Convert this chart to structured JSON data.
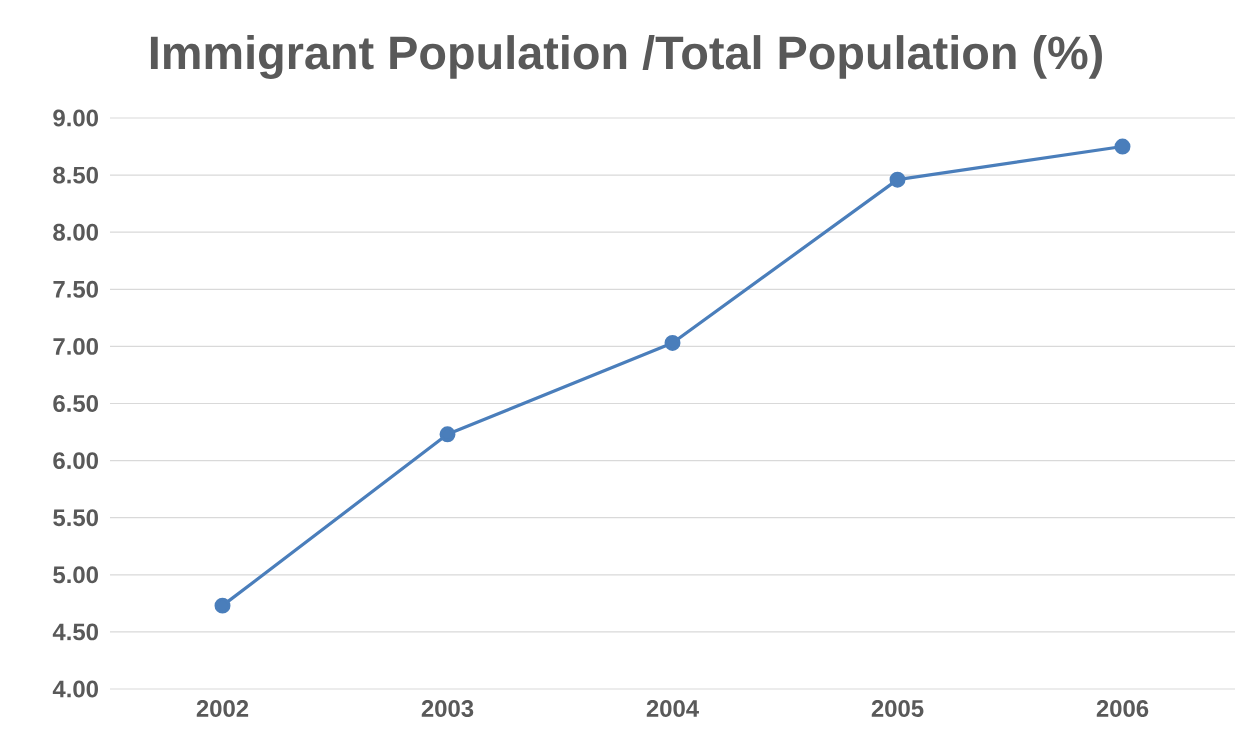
{
  "chart_data": {
    "type": "line",
    "title": "Immigrant Population /Total Population (%)",
    "categories": [
      "2002",
      "2003",
      "2004",
      "2005",
      "2006"
    ],
    "values": [
      4.73,
      6.23,
      7.03,
      8.46,
      8.75
    ],
    "color": "#4a7ebb",
    "ylim": [
      4,
      9
    ],
    "yticks": [
      {
        "value": 4,
        "label": "4.00"
      },
      {
        "value": 4.5,
        "label": "4.50"
      },
      {
        "value": 5,
        "label": "5.00"
      },
      {
        "value": 5.5,
        "label": "5.50"
      },
      {
        "value": 6,
        "label": "6.00"
      },
      {
        "value": 6.5,
        "label": "6.50"
      },
      {
        "value": 7,
        "label": "7.00"
      },
      {
        "value": 7.5,
        "label": "7.50"
      },
      {
        "value": 8,
        "label": "8.00"
      },
      {
        "value": 8.5,
        "label": "8.50"
      },
      {
        "value": 9,
        "label": "9.00"
      }
    ],
    "grid": "y",
    "marker": "circle",
    "line_style": "solid"
  }
}
